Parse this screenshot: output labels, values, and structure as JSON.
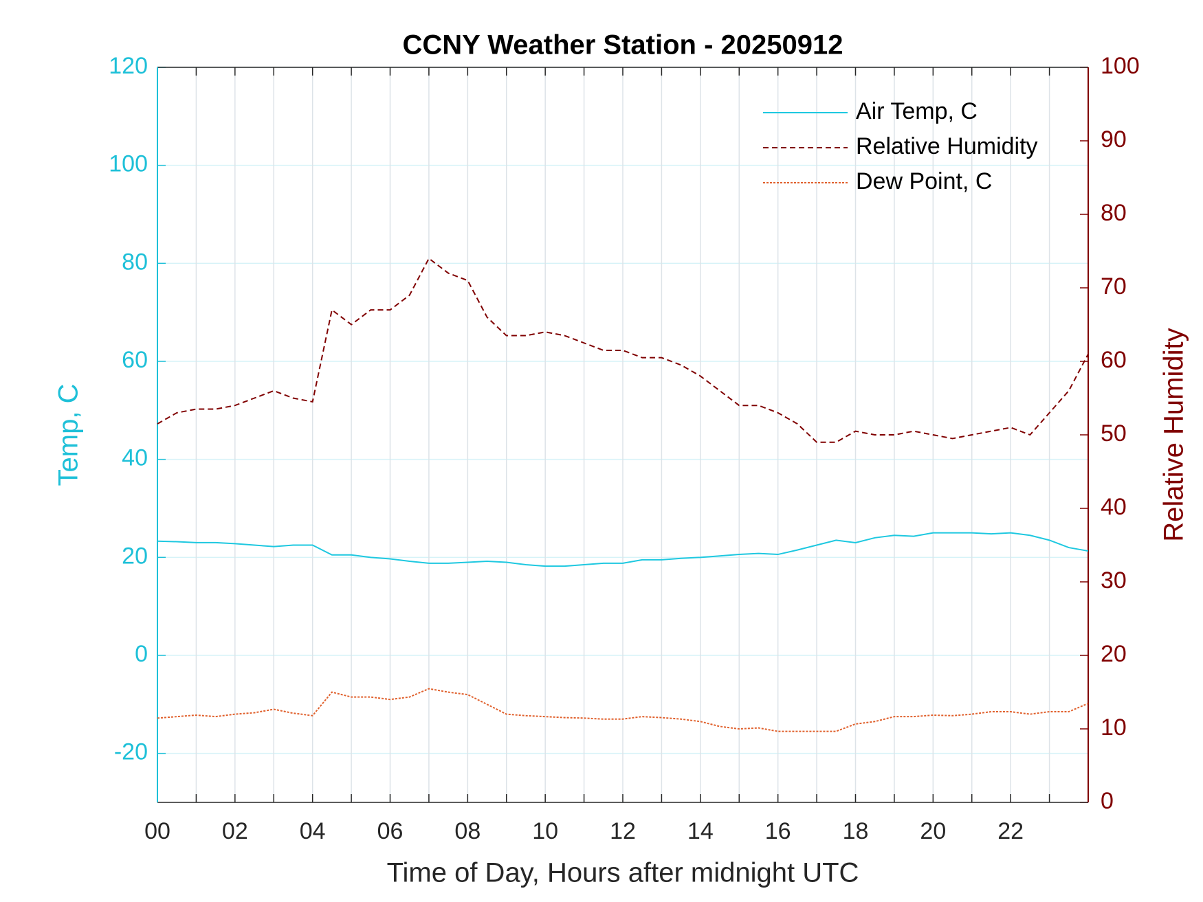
{
  "chart_data": {
    "type": "line",
    "title": "CCNY Weather Station - 20250912",
    "x_label": "Time of Day, Hours after midnight UTC",
    "y_label": "Temp, C",
    "y2_label": "Relative Humidity",
    "x": [
      0,
      0.5,
      1,
      1.5,
      2,
      2.5,
      3,
      3.5,
      4,
      4.5,
      5,
      5.5,
      6,
      6.5,
      7,
      7.5,
      8,
      8.5,
      9,
      9.5,
      10,
      10.5,
      11,
      11.5,
      12,
      12.5,
      13,
      13.5,
      14,
      14.5,
      15,
      15.5,
      16,
      16.5,
      17,
      17.5,
      18,
      18.5,
      19,
      19.5,
      20,
      20.5,
      21,
      21.5,
      22,
      22.5,
      23,
      23.5,
      24
    ],
    "series": [
      {
        "name": "Air Temp, C",
        "color": "#1ec8e0",
        "dash": "solid",
        "axis": "y",
        "values": [
          23.3,
          23.2,
          23,
          23,
          22.8,
          22.5,
          22.2,
          22.5,
          22.5,
          20.5,
          20.5,
          20,
          19.7,
          19.2,
          18.8,
          18.8,
          19,
          19.2,
          19,
          18.5,
          18.2,
          18.2,
          18.5,
          18.8,
          18.8,
          19.5,
          19.5,
          19.8,
          20,
          20.3,
          20.6,
          20.8,
          20.6,
          21.5,
          22.5,
          23.5,
          23,
          24,
          24.5,
          24.3,
          25,
          25,
          25,
          24.8,
          25,
          24.5,
          23.5,
          22,
          21.3
        ]
      },
      {
        "name": "Relative Humidity",
        "color": "#800000",
        "dash": "dashed",
        "axis": "y2",
        "values": [
          51.5,
          53,
          53.5,
          53.5,
          54,
          55,
          56,
          55,
          54.5,
          67,
          65,
          67,
          67,
          69,
          74,
          72,
          71,
          66,
          63.5,
          63.5,
          64,
          63.5,
          62.5,
          61.5,
          61.5,
          60.5,
          60.5,
          59.5,
          58,
          56,
          54,
          54,
          53,
          51.5,
          49,
          49,
          50.5,
          50,
          50,
          50.5,
          50,
          49.5,
          50,
          50.5,
          51,
          50,
          53,
          56,
          61
        ]
      },
      {
        "name": "Dew Point, C",
        "color": "#e0602c",
        "dash": "dotted",
        "axis": "y",
        "values": [
          -12.8,
          -12.5,
          -12.2,
          -12.5,
          -12,
          -11.7,
          -11,
          -11.8,
          -12.3,
          -7.5,
          -8.5,
          -8.5,
          -9,
          -8.5,
          -6.8,
          -7.5,
          -8,
          -10,
          -12,
          -12.3,
          -12.5,
          -12.7,
          -12.8,
          -13,
          -13,
          -12.5,
          -12.7,
          -13,
          -13.5,
          -14.5,
          -15,
          -14.8,
          -15.5,
          -15.5,
          -15.5,
          -15.5,
          -14,
          -13.5,
          -12.5,
          -12.5,
          -12.2,
          -12.3,
          -12,
          -11.5,
          -11.5,
          -12,
          -11.5,
          -11.5,
          -9.8
        ]
      }
    ],
    "xlim": [
      0,
      24
    ],
    "xticks": [
      {
        "value": 0,
        "label": "00"
      },
      {
        "value": 2,
        "label": "02"
      },
      {
        "value": 4,
        "label": "04"
      },
      {
        "value": 6,
        "label": "06"
      },
      {
        "value": 8,
        "label": "08"
      },
      {
        "value": 10,
        "label": "10"
      },
      {
        "value": 12,
        "label": "12"
      },
      {
        "value": 14,
        "label": "14"
      },
      {
        "value": 16,
        "label": "16"
      },
      {
        "value": 18,
        "label": "18"
      },
      {
        "value": 20,
        "label": "20"
      },
      {
        "value": 22,
        "label": "22"
      }
    ],
    "xminorticks": [
      1,
      3,
      5,
      7,
      9,
      11,
      13,
      15,
      17,
      19,
      21,
      23
    ],
    "ylim": [
      -30,
      120
    ],
    "yticks": [
      -20,
      0,
      20,
      40,
      60,
      80,
      100,
      120
    ],
    "y2lim": [
      0,
      100
    ],
    "y2ticks": [
      0,
      10,
      20,
      30,
      40,
      50,
      60,
      70,
      80,
      90,
      100
    ],
    "y_color": "#1ec0d8",
    "y2_color": "#800000",
    "grid": true,
    "legend": "northeast"
  }
}
